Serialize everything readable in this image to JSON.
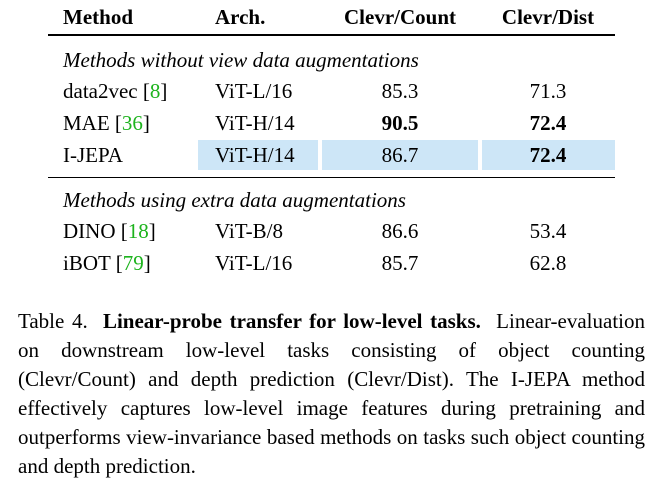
{
  "table": {
    "header": [
      "Method",
      "Arch.",
      "Clevr/Count",
      "Clevr/Dist"
    ],
    "sections": [
      {
        "label": "Methods without view data augmentations",
        "rows": [
          {
            "method": "data2vec",
            "cite": [
              "[",
              "8",
              "]"
            ],
            "arch": "ViT-L/16",
            "count": "85.3",
            "dist": "71.3",
            "bold": [
              false,
              false
            ],
            "highlight": false
          },
          {
            "method": "MAE",
            "cite": [
              "[",
              "36",
              "]"
            ],
            "arch": "ViT-H/14",
            "count": "90.5",
            "dist": "72.4",
            "bold": [
              true,
              true
            ],
            "highlight": false
          },
          {
            "method": "I-JEPA",
            "arch": "ViT-H/14",
            "count": "86.7",
            "dist": "72.4",
            "bold": [
              false,
              true
            ],
            "highlight": true
          }
        ]
      },
      {
        "label": "Methods using extra data augmentations",
        "rows": [
          {
            "method": "DINO",
            "cite": [
              "[",
              "18",
              "]"
            ],
            "arch": "ViT-B/8",
            "count": "86.6",
            "dist": "53.4",
            "bold": [
              false,
              false
            ],
            "highlight": false
          },
          {
            "method": "iBOT",
            "cite": [
              "[",
              "79",
              "]"
            ],
            "arch": "ViT-L/16",
            "count": "85.7",
            "dist": "62.8",
            "bold": [
              false,
              false
            ],
            "highlight": false
          }
        ]
      }
    ]
  },
  "caption": {
    "label": "Table 4.",
    "title": "Linear-probe transfer for low-level tasks.",
    "text": "Linear-evaluation on downstream low-level tasks consisting of object counting (Clevr/Count) and depth prediction (Clevr/Dist). The I-JEPA method effectively captures low-level image features during pretraining and outperforms view-invariance based methods on tasks such object counting and depth prediction."
  }
}
